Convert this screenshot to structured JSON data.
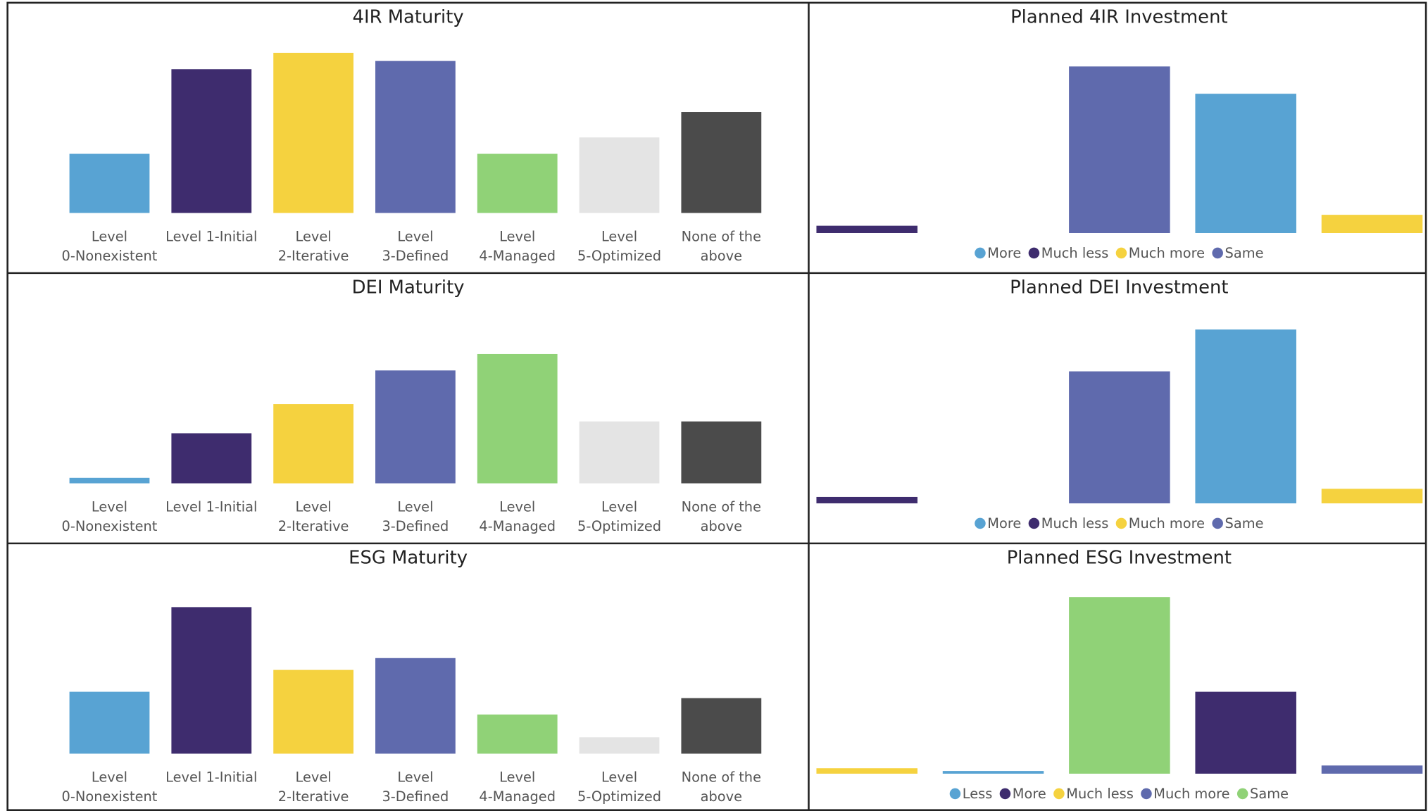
{
  "chart_data": [
    {
      "type": "bar",
      "title": "4IR Maturity",
      "categories": [
        "Level\n0-Nonexistent",
        "Level 1-Initial",
        "Level\n2-Iterative",
        "Level\n3-Defined",
        "Level\n4-Managed",
        "Level\n5-Optimized",
        "None of the\nabove"
      ],
      "values": [
        65,
        158,
        176,
        167,
        65,
        83,
        111
      ],
      "colors": [
        "#58a3d3",
        "#3e2c6e",
        "#f5d23f",
        "#5f6aad",
        "#90d277",
        "#e4e4e4",
        "#4b4b4b"
      ]
    },
    {
      "type": "grouped-bar",
      "title": "Planned 4IR Investment",
      "categories": [
        null,
        null,
        null,
        null,
        null
      ],
      "series": [
        {
          "name": "More",
          "color": "#58a3d3",
          "values": [
            null,
            null,
            null,
            153,
            null
          ]
        },
        {
          "name": "Much less",
          "color": "#3e2c6e",
          "values": [
            8,
            null,
            null,
            null,
            null
          ]
        },
        {
          "name": "Much more",
          "color": "#f5d23f",
          "values": [
            null,
            null,
            null,
            null,
            20
          ]
        },
        {
          "name": "Same",
          "color": "#5f6aad",
          "values": [
            null,
            null,
            183,
            null,
            null
          ]
        }
      ]
    },
    {
      "type": "bar",
      "title": "DEI Maturity",
      "categories": [
        "Level\n0-Nonexistent",
        "Level 1-Initial",
        "Level\n2-Iterative",
        "Level\n3-Defined",
        "Level\n4-Managed",
        "Level\n5-Optimized",
        "None of the\nabove"
      ],
      "values": [
        6,
        55,
        87,
        124,
        142,
        68,
        68
      ],
      "colors": [
        "#58a3d3",
        "#3e2c6e",
        "#f5d23f",
        "#5f6aad",
        "#90d277",
        "#e4e4e4",
        "#4b4b4b"
      ]
    },
    {
      "type": "grouped-bar",
      "title": "Planned DEI Investment",
      "categories": [
        null,
        null,
        null,
        null,
        null
      ],
      "series": [
        {
          "name": "More",
          "color": "#58a3d3",
          "values": [
            null,
            null,
            null,
            191,
            null
          ]
        },
        {
          "name": "Much less",
          "color": "#3e2c6e",
          "values": [
            7,
            null,
            null,
            null,
            null
          ]
        },
        {
          "name": "Much more",
          "color": "#f5d23f",
          "values": [
            null,
            null,
            null,
            null,
            16
          ]
        },
        {
          "name": "Same",
          "color": "#5f6aad",
          "values": [
            null,
            null,
            145,
            null,
            null
          ]
        }
      ]
    },
    {
      "type": "bar",
      "title": "ESG Maturity",
      "categories": [
        "Level\n0-Nonexistent",
        "Level 1-Initial",
        "Level\n2-Iterative",
        "Level\n3-Defined",
        "Level\n4-Managed",
        "Level\n5-Optimized",
        "None of the\nabove"
      ],
      "values": [
        68,
        161,
        92,
        105,
        43,
        18,
        61
      ],
      "colors": [
        "#58a3d3",
        "#3e2c6e",
        "#f5d23f",
        "#5f6aad",
        "#90d277",
        "#e4e4e4",
        "#4b4b4b"
      ]
    },
    {
      "type": "grouped-bar",
      "title": "Planned ESG Investment",
      "categories": [
        null,
        null,
        null,
        null,
        null
      ],
      "series": [
        {
          "name": "Less",
          "color": "#58a3d3",
          "values": [
            null,
            3,
            null,
            null,
            null
          ]
        },
        {
          "name": "More",
          "color": "#3e2c6e",
          "values": [
            null,
            null,
            null,
            90,
            null
          ]
        },
        {
          "name": "Much less",
          "color": "#f5d23f",
          "values": [
            6,
            null,
            null,
            null,
            null
          ]
        },
        {
          "name": "Much more",
          "color": "#5f6aad",
          "values": [
            null,
            null,
            null,
            null,
            9
          ]
        },
        {
          "name": "Same",
          "color": "#90d277",
          "values": [
            null,
            null,
            194,
            null,
            null
          ]
        }
      ]
    }
  ]
}
